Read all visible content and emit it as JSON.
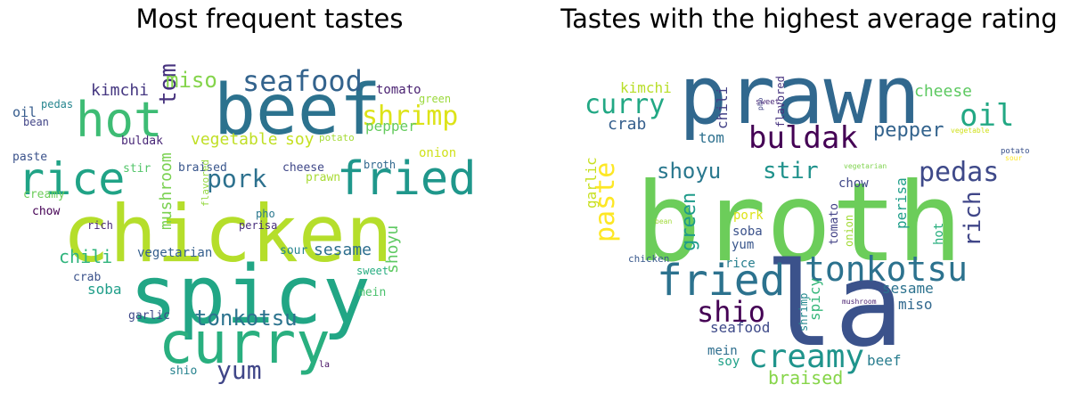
{
  "panels": [
    {
      "title": "Most frequent tastes",
      "words": [
        {
          "text": "chicken",
          "color": "#b5de2b"
        },
        {
          "text": "spicy",
          "color": "#21a685"
        },
        {
          "text": "beef",
          "color": "#2c728e"
        },
        {
          "text": "curry",
          "color": "#29af7f"
        },
        {
          "text": "hot",
          "color": "#3dbc74"
        },
        {
          "text": "fried",
          "color": "#1f978b"
        },
        {
          "text": "rice",
          "color": "#20a386"
        },
        {
          "text": "seafood",
          "color": "#33638d"
        },
        {
          "text": "shrimp",
          "color": "#dde318"
        },
        {
          "text": "tonkotsu",
          "color": "#2c738e"
        },
        {
          "text": "tom",
          "color": "#46327e"
        },
        {
          "text": "pork",
          "color": "#2d718e"
        },
        {
          "text": "yum",
          "color": "#404688"
        },
        {
          "text": "miso",
          "color": "#84d44b"
        },
        {
          "text": "kimchi",
          "color": "#453781"
        },
        {
          "text": "vegetable",
          "color": "#c0df25"
        },
        {
          "text": "soy",
          "color": "#c5e021"
        },
        {
          "text": "chili",
          "color": "#2fb47c"
        },
        {
          "text": "sesame",
          "color": "#2e6f8e"
        },
        {
          "text": "shoyu",
          "color": "#5ec962"
        },
        {
          "text": "mushroom",
          "color": "#7ad151"
        },
        {
          "text": "vegetarian",
          "color": "#355f8d"
        },
        {
          "text": "soba",
          "color": "#1f9e89"
        },
        {
          "text": "tomato",
          "color": "#481f70"
        },
        {
          "text": "pepper",
          "color": "#65cb5e"
        },
        {
          "text": "cheese",
          "color": "#3f4788"
        },
        {
          "text": "prawn",
          "color": "#a8db34"
        },
        {
          "text": "broth",
          "color": "#31688e"
        },
        {
          "text": "onion",
          "color": "#d0e11c"
        },
        {
          "text": "green",
          "color": "#9bd93c"
        },
        {
          "text": "potato",
          "color": "#a5db36"
        },
        {
          "text": "buldak",
          "color": "#482677"
        },
        {
          "text": "stir",
          "color": "#52c569"
        },
        {
          "text": "braised",
          "color": "#39568c"
        },
        {
          "text": "oil",
          "color": "#365c8d"
        },
        {
          "text": "pedas",
          "color": "#25858e"
        },
        {
          "text": "bean",
          "color": "#414487"
        },
        {
          "text": "paste",
          "color": "#3b528b"
        },
        {
          "text": "creamy",
          "color": "#6ccd5a"
        },
        {
          "text": "chow",
          "color": "#440154"
        },
        {
          "text": "rich",
          "color": "#482878"
        },
        {
          "text": "flavored",
          "color": "#95d840"
        },
        {
          "text": "pho",
          "color": "#2a788e"
        },
        {
          "text": "perisa",
          "color": "#472d7b"
        },
        {
          "text": "sour",
          "color": "#25848e"
        },
        {
          "text": "crab",
          "color": "#3b528b"
        },
        {
          "text": "sweet",
          "color": "#27ad81"
        },
        {
          "text": "mein",
          "color": "#4ac16d"
        },
        {
          "text": "garlic",
          "color": "#3e4989"
        },
        {
          "text": "shio",
          "color": "#26828e"
        },
        {
          "text": "la",
          "color": "#471164"
        }
      ]
    },
    {
      "title": "Tastes with the highest average rating",
      "words": [
        {
          "text": "broth",
          "color": "#6ccd5a"
        },
        {
          "text": "prawn",
          "color": "#31688e"
        },
        {
          "text": "la",
          "color": "#3b528b"
        },
        {
          "text": "tonkotsu",
          "color": "#2c728e"
        },
        {
          "text": "fried",
          "color": "#2c728e"
        },
        {
          "text": "buldak",
          "color": "#440154"
        },
        {
          "text": "creamy",
          "color": "#1f948c"
        },
        {
          "text": "shio",
          "color": "#440154"
        },
        {
          "text": "pedas",
          "color": "#3e4989"
        },
        {
          "text": "oil",
          "color": "#22a884"
        },
        {
          "text": "curry",
          "color": "#22a884"
        },
        {
          "text": "shoyu",
          "color": "#2a788e"
        },
        {
          "text": "stir",
          "color": "#20928c"
        },
        {
          "text": "paste",
          "color": "#fde725"
        },
        {
          "text": "rich",
          "color": "#404688"
        },
        {
          "text": "pepper",
          "color": "#33638d"
        },
        {
          "text": "green",
          "color": "#1e9b8a"
        },
        {
          "text": "cheese",
          "color": "#5ec962"
        },
        {
          "text": "braised",
          "color": "#86d549"
        },
        {
          "text": "sesame",
          "color": "#2c728e"
        },
        {
          "text": "crab",
          "color": "#355f8d"
        },
        {
          "text": "tom",
          "color": "#2d708e"
        },
        {
          "text": "kimchi",
          "color": "#b8de29"
        },
        {
          "text": "chili",
          "color": "#424086"
        },
        {
          "text": "flavored",
          "color": "#46337f"
        },
        {
          "text": "garlic",
          "color": "#c8e020"
        },
        {
          "text": "perisa",
          "color": "#1f9e89"
        },
        {
          "text": "hot",
          "color": "#29af7f"
        },
        {
          "text": "spicy",
          "color": "#35b779"
        },
        {
          "text": "seafood",
          "color": "#3e4a89"
        },
        {
          "text": "miso",
          "color": "#31688e"
        },
        {
          "text": "beef",
          "color": "#287d8e"
        },
        {
          "text": "soba",
          "color": "#3b528b"
        },
        {
          "text": "yum",
          "color": "#39568c"
        },
        {
          "text": "pork",
          "color": "#dde318"
        },
        {
          "text": "chow",
          "color": "#3f4788"
        },
        {
          "text": "tomato",
          "color": "#424186"
        },
        {
          "text": "onion",
          "color": "#a2da37"
        },
        {
          "text": "rice",
          "color": "#277f8e"
        },
        {
          "text": "soy",
          "color": "#1fa188"
        },
        {
          "text": "mein",
          "color": "#2e6e8e"
        },
        {
          "text": "shrimp",
          "color": "#23898e"
        },
        {
          "text": "chicken",
          "color": "#38588c"
        },
        {
          "text": "sweet",
          "color": "#482777"
        },
        {
          "text": "pho",
          "color": "#414487"
        },
        {
          "text": "vegetable",
          "color": "#d0e11c"
        },
        {
          "text": "potato",
          "color": "#3b528b"
        },
        {
          "text": "sour",
          "color": "#fde725"
        },
        {
          "text": "vegetarian",
          "color": "#7fd34e"
        },
        {
          "text": "bean",
          "color": "#a0da39"
        },
        {
          "text": "mushroom",
          "color": "#481f70"
        }
      ]
    }
  ]
}
